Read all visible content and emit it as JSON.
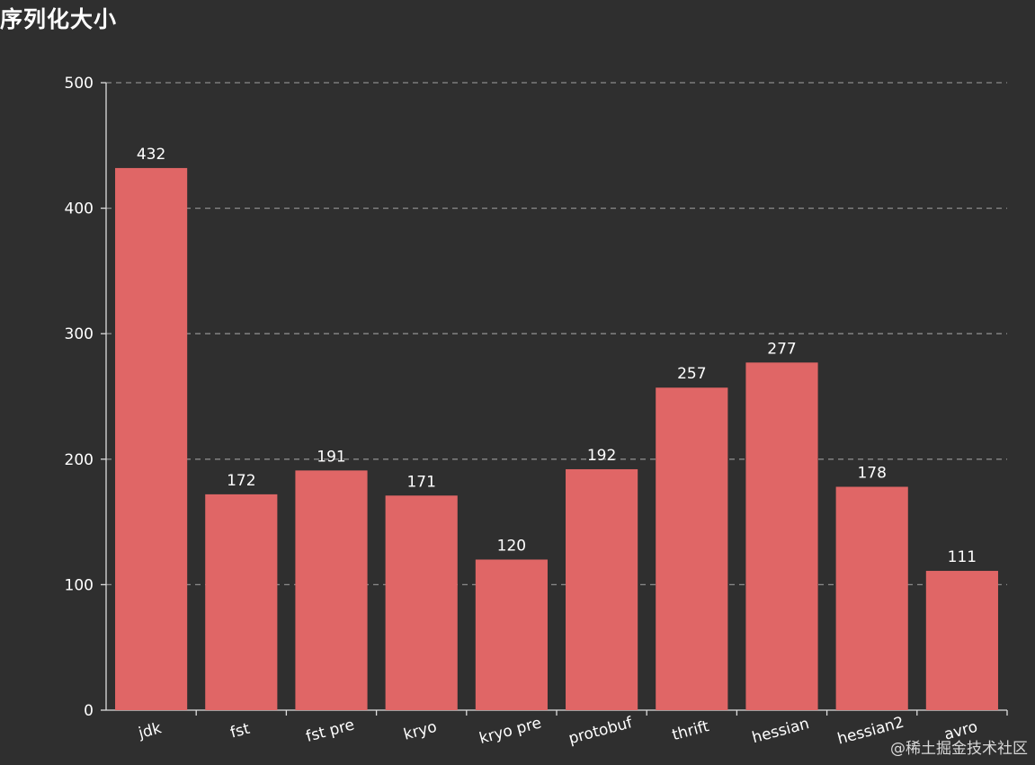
{
  "chart_data": {
    "type": "bar",
    "title": "序列化大小",
    "categories": [
      "jdk",
      "fst",
      "fst pre",
      "kryo",
      "kryo pre",
      "protobuf",
      "thrift",
      "hessian",
      "hessian2",
      "avro"
    ],
    "values": [
      432,
      172,
      191,
      171,
      120,
      192,
      257,
      277,
      178,
      111
    ],
    "xlabel": "",
    "ylabel": "",
    "ylim": [
      0,
      500
    ],
    "yticks": [
      0,
      100,
      200,
      300,
      400,
      500
    ],
    "grid": "horizontal dashed",
    "legend": "none",
    "data_labels": true,
    "bar_color": "#e06666",
    "background_color": "#2f2f2f",
    "text_color": "#ffffff"
  },
  "watermark": "@稀土掘金技术社区"
}
